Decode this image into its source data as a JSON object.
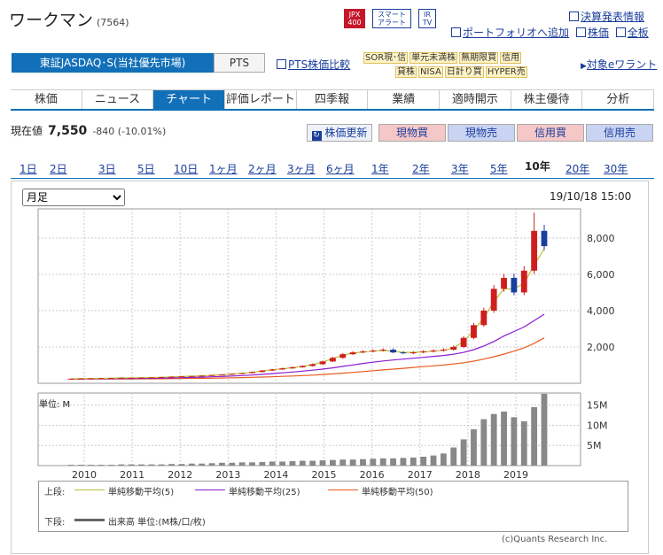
{
  "header": {
    "title": "ワークマン",
    "code": "(7564)",
    "badges": {
      "jpx": "JPX 400",
      "smart": "スマート アラート",
      "irtv": "IR TV"
    },
    "links": [
      "決算発表情報",
      "ポートフォリオへ追加",
      "株価",
      "全板"
    ]
  },
  "market": {
    "primary": "東証JASDAQ･S(当社優先市場)",
    "pts": "PTS",
    "pts_compare": "PTS株価比較",
    "warrant": "対象eワラント",
    "tags_row1": [
      "SOR現･信",
      "単元未満株",
      "無期限買",
      "信用"
    ],
    "tags_row2": [
      "貸株",
      "NISA",
      "日計り買",
      "HYPER売"
    ]
  },
  "nav": {
    "tabs": [
      "株価",
      "ニュース",
      "チャート",
      "評価レポート",
      "四季報",
      "業績",
      "適時開示",
      "株主優待",
      "分析"
    ],
    "active": 2
  },
  "quote": {
    "label": "現在値",
    "price": "7,550",
    "change": "-840 (-10.01%)"
  },
  "actions": {
    "update": "株価更新",
    "buy_cash": "現物買",
    "sell_cash": "現物売",
    "buy_margin": "信用買",
    "sell_margin": "信用売"
  },
  "periods": {
    "items": [
      "1日",
      "2日",
      "3日",
      "5日",
      "10日",
      "1ヶ月",
      "2ヶ月",
      "3ヶ月",
      "6ヶ月",
      "1年",
      "2年",
      "3年",
      "5年",
      "10年",
      "20年",
      "30年"
    ],
    "active": 13
  },
  "chart_controls": {
    "interval": "月足",
    "timestamp": "19/10/18 15:00"
  },
  "chart_data": {
    "type": "line",
    "x_ticks": [
      "2010",
      "2011",
      "2012",
      "2013",
      "2014",
      "2015",
      "2016",
      "2017",
      "2018",
      "2019"
    ],
    "price_axis": {
      "ticks": [
        "2,000",
        "4,000",
        "6,000",
        "8,000"
      ],
      "ylim": [
        0,
        9600
      ]
    },
    "volume_axis": {
      "unit_label": "単位: M",
      "ticks": [
        "5M",
        "10M",
        "15M"
      ],
      "ylim": [
        0,
        18
      ]
    },
    "price": [
      250,
      260,
      270,
      280,
      290,
      300,
      300,
      310,
      320,
      340,
      360,
      380,
      400,
      420,
      450,
      480,
      520,
      560,
      620,
      700,
      760,
      820,
      880,
      950,
      1050,
      1200,
      1400,
      1600,
      1700,
      1750,
      1800,
      1850,
      1700,
      1650,
      1700,
      1750,
      1800,
      1850,
      2000,
      2500,
      3200,
      4000,
      5200,
      5800,
      5000,
      6200,
      8390,
      7550
    ],
    "ma5": [
      250,
      255,
      260,
      270,
      280,
      290,
      300,
      305,
      315,
      330,
      350,
      370,
      390,
      410,
      440,
      470,
      510,
      550,
      600,
      680,
      740,
      800,
      860,
      930,
      1030,
      1170,
      1360,
      1550,
      1660,
      1720,
      1770,
      1810,
      1760,
      1700,
      1700,
      1730,
      1770,
      1820,
      1950,
      2300,
      2900,
      3600,
      4500,
      5200,
      5200,
      5500,
      6500,
      7400
    ],
    "ma25": [
      240,
      242,
      245,
      250,
      255,
      260,
      265,
      270,
      275,
      285,
      295,
      305,
      320,
      335,
      355,
      375,
      400,
      425,
      455,
      490,
      530,
      575,
      620,
      670,
      720,
      780,
      850,
      930,
      1010,
      1090,
      1160,
      1230,
      1280,
      1330,
      1380,
      1430,
      1480,
      1530,
      1600,
      1700,
      1850,
      2050,
      2300,
      2600,
      2850,
      3100,
      3450,
      3800
    ],
    "ma50": [
      230,
      231,
      232,
      234,
      236,
      238,
      240,
      243,
      246,
      250,
      255,
      260,
      266,
      272,
      280,
      290,
      300,
      312,
      325,
      340,
      358,
      378,
      400,
      425,
      450,
      480,
      515,
      555,
      600,
      645,
      690,
      735,
      780,
      825,
      870,
      915,
      960,
      1005,
      1060,
      1130,
      1220,
      1330,
      1460,
      1610,
      1770,
      1950,
      2200,
      2500
    ],
    "volume": [
      0.2,
      0.2,
      0.2,
      0.2,
      0.2,
      0.3,
      0.3,
      0.3,
      0.3,
      0.3,
      0.4,
      0.4,
      0.5,
      0.5,
      0.6,
      0.7,
      0.7,
      0.8,
      0.8,
      0.9,
      1.0,
      1.0,
      1.1,
      1.2,
      1.2,
      1.3,
      1.4,
      1.5,
      1.5,
      1.6,
      1.7,
      1.8,
      1.8,
      1.9,
      2.0,
      2.2,
      2.5,
      3.0,
      4.5,
      6.5,
      9.0,
      11.5,
      12.8,
      13.4,
      12.0,
      11.0,
      14.5,
      17.8
    ],
    "legend": {
      "top_label": "上段:",
      "ma5": "単純移動平均(5)",
      "ma25": "単純移動平均(25)",
      "ma50": "単純移動平均(50)",
      "bottom_label": "下段:",
      "volume": "出来高 単位:(M株/口/枚)"
    },
    "colors": {
      "ma5": "#b7c234",
      "ma25": "#8a1bd6",
      "ma50": "#e85a21",
      "up": "#d01e1e",
      "down": "#1a3ea0",
      "volume": "#888888"
    },
    "credit": "(c)Quants Research Inc."
  }
}
